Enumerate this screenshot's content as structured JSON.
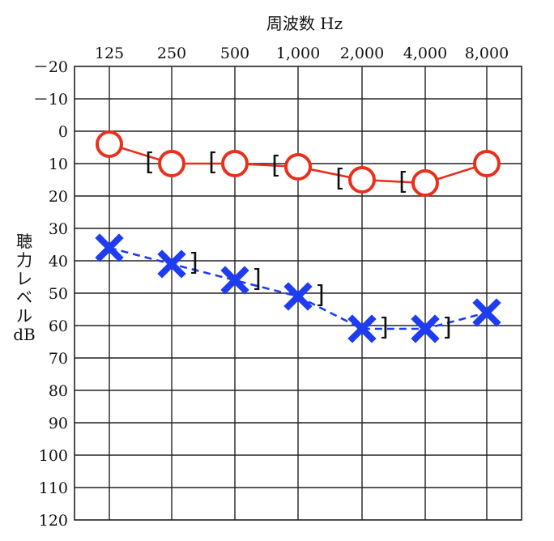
{
  "chart_data": {
    "type": "line",
    "xlabel": "周波数 Hz",
    "ylabel": [
      "聴",
      "力",
      "レ",
      "ベ",
      "ル",
      "dB"
    ],
    "x_categories": [
      "125",
      "250",
      "500",
      "1,000",
      "2,000",
      "4,000",
      "8,000"
    ],
    "y_ticks": [
      "－20",
      "－10",
      "0",
      "10",
      "20",
      "30",
      "40",
      "50",
      "60",
      "70",
      "80",
      "90",
      "100",
      "110",
      "120"
    ],
    "ylim": [
      -20,
      120
    ],
    "y_inverted": true,
    "grid": true,
    "series": [
      {
        "marker": "circle",
        "line_style": "solid",
        "color": "#e8301c",
        "values": [
          4,
          10,
          10,
          11,
          15,
          16,
          10
        ],
        "bone_markers": {
          "symbol": "[",
          "at": [
            "250",
            "500",
            "1,000",
            "2,000",
            "4,000"
          ]
        }
      },
      {
        "marker": "cross",
        "line_style": "dashed",
        "color": "#1f3df0",
        "values": [
          36,
          41,
          46,
          51,
          61,
          61,
          56
        ],
        "bone_markers": {
          "symbol": "]",
          "at": [
            "250",
            "500",
            "1,000",
            "2,000",
            "4,000"
          ]
        }
      }
    ]
  }
}
